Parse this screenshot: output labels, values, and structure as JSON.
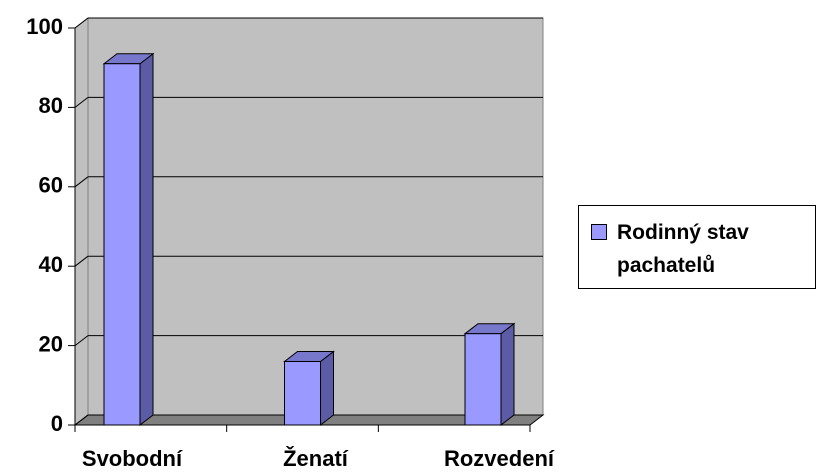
{
  "chart_data": {
    "type": "bar",
    "categories": [
      "Svobodní",
      "Ženatí",
      "Rozvedení"
    ],
    "series": [
      {
        "name": "Rodinný stav pachatelů",
        "color": "#9999ff",
        "values": [
          91,
          16,
          23
        ]
      }
    ],
    "ylim": [
      0,
      100
    ],
    "yticks": [
      0,
      20,
      40,
      60,
      80,
      100
    ],
    "grid": true,
    "legend": "right"
  }
}
